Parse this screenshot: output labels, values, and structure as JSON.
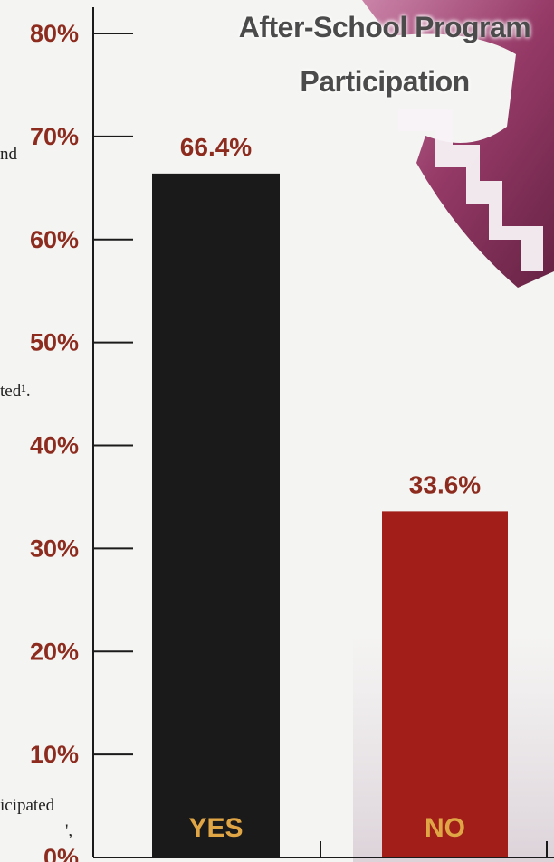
{
  "background_text": [
    {
      "text": "nd"
    },
    {
      "text": "ted¹."
    },
    {
      "text": "icipated"
    },
    {
      "text": "',"
    }
  ],
  "chart_data": {
    "type": "bar",
    "title_lines": [
      "After-School Program",
      "Participation"
    ],
    "categories": [
      "YES",
      "NO"
    ],
    "values": [
      66.4,
      33.6
    ],
    "value_labels": [
      "66.4%",
      "33.6%"
    ],
    "ylim": [
      0,
      80
    ],
    "yticks": [
      0,
      10,
      20,
      30,
      40,
      50,
      60,
      70,
      80
    ],
    "ytick_labels": [
      "0%",
      "10%",
      "20%",
      "30%",
      "40%",
      "50%",
      "60%",
      "70%",
      "80%"
    ],
    "bar_colors": [
      "#1b1a1b",
      "#a11f18"
    ],
    "label_color": "#8c2b1e",
    "category_label_color": "#e0a645",
    "grid": false,
    "legend": "none"
  }
}
